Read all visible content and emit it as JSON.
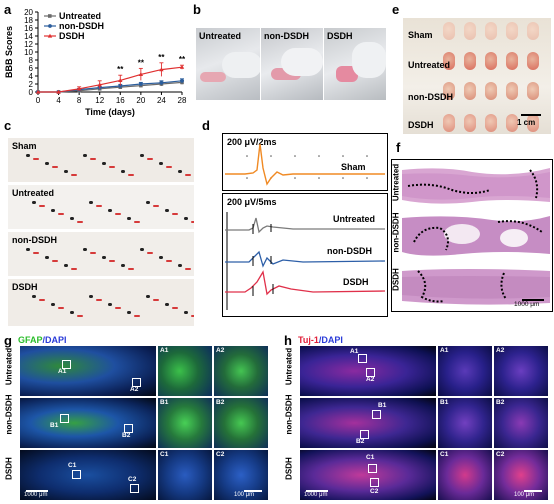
{
  "panels": {
    "a": "a",
    "b": "b",
    "c": "c",
    "d": "d",
    "e": "e",
    "f": "f",
    "g": "g",
    "h": "h"
  },
  "chart_data": {
    "type": "line",
    "xlabel": "Time (days)",
    "ylabel": "BBB Scores",
    "x": [
      0,
      4,
      8,
      12,
      16,
      20,
      24,
      28
    ],
    "xticks": [
      "0",
      "4",
      "8",
      "12",
      "16",
      "20",
      "24",
      "28"
    ],
    "yticks": [
      "0",
      "2",
      "4",
      "6",
      "8",
      "10",
      "12",
      "14",
      "16",
      "18",
      "20"
    ],
    "xlim": [
      0,
      28
    ],
    "ylim": [
      0,
      20
    ],
    "series": [
      {
        "name": "Untreated",
        "color": "#6b6b6b",
        "marker": "square",
        "values": [
          0,
          0,
          0.3,
          0.8,
          1.2,
          1.6,
          2.0,
          2.4
        ],
        "err": [
          0,
          0,
          0.2,
          0.3,
          0.4,
          0.4,
          0.5,
          0.5
        ]
      },
      {
        "name": "non-DSDH",
        "color": "#2b5d9c",
        "marker": "circle",
        "values": [
          0,
          0,
          0.6,
          1.1,
          1.5,
          2.0,
          2.3,
          2.8
        ],
        "err": [
          0,
          0,
          0.3,
          0.3,
          0.4,
          0.4,
          0.5,
          0.5
        ]
      },
      {
        "name": "DSDH",
        "color": "#e03030",
        "marker": "triangle",
        "values": [
          0,
          0,
          0.8,
          1.8,
          2.9,
          4.4,
          5.6,
          6.2
        ],
        "err": [
          0,
          0,
          0.5,
          1.0,
          1.3,
          1.5,
          1.7,
          0.5
        ]
      }
    ],
    "annotations": [
      {
        "x": 16,
        "text": "**"
      },
      {
        "x": 20,
        "text": "**"
      },
      {
        "x": 24,
        "text": "**"
      },
      {
        "x": 28,
        "text": "**"
      }
    ],
    "legend": "top-left"
  },
  "b": {
    "labels": [
      "Untreated",
      "non-DSDH",
      "DSDH"
    ]
  },
  "c": {
    "labels": [
      "Sham",
      "Untreated",
      "non-DSDH",
      "DSDH"
    ]
  },
  "d": {
    "scale1": "200 μV/2ms",
    "scale2": "200 μV/5ms",
    "traces": [
      {
        "name": "Sham",
        "color": "#f08a24"
      },
      {
        "name": "Untreated",
        "color": "#7a7a7a"
      },
      {
        "name": "non-DSDH",
        "color": "#2d5fa8"
      },
      {
        "name": "DSDH",
        "color": "#e0304a"
      }
    ]
  },
  "e": {
    "labels": [
      "Sham",
      "Untreated",
      "non-DSDH",
      "DSDH"
    ],
    "scale": "1 cm"
  },
  "f": {
    "labels": [
      "Untreated",
      "non-DSDH",
      "DSDH"
    ],
    "scale": "1000 μm"
  },
  "g": {
    "title_a": "GFAP",
    "title_b": "/DAPI",
    "rows": [
      "Untreated",
      "non-DSDH",
      "DSDH"
    ],
    "boxes": [
      "A1",
      "A2",
      "B1",
      "B2",
      "C1",
      "C2"
    ],
    "scale_big": "1000 μm",
    "scale_small": "100 μm"
  },
  "h": {
    "title_a": "Tuj-1",
    "title_b": "/DAPI",
    "rows": [
      "Untreated",
      "non-DSDH",
      "DSDH"
    ],
    "boxes": [
      "A1",
      "A2",
      "B1",
      "B2",
      "C1",
      "C2"
    ],
    "scale_big": "1000 μm",
    "scale_small": "100 μm"
  }
}
